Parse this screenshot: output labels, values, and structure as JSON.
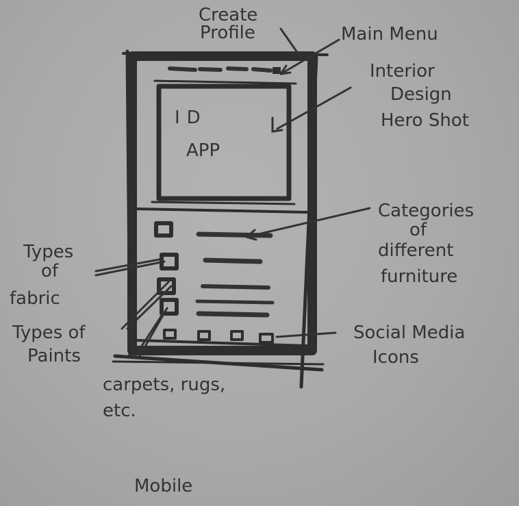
{
  "screen": {
    "hero_line1": "ID",
    "hero_line2": "APP"
  },
  "annotations": {
    "create_profile": [
      "Create",
      "Profile"
    ],
    "main_menu": "Main Menu",
    "hero_shot": [
      "Interior",
      "Design",
      "Hero Shot"
    ],
    "categories": [
      "Categories",
      "of",
      "different",
      "furniture"
    ],
    "types_of_fabric": [
      "Types",
      "of",
      "fabric"
    ],
    "types_of_paints": [
      "Types of",
      "Paints"
    ],
    "carpets": [
      "carpets, rugs,",
      "etc."
    ],
    "social_media": [
      "Social Media",
      "Icons"
    ]
  },
  "caption": "Mobile",
  "colors": {
    "paper": "#aaaaaa",
    "ink": "#2e2e2e"
  }
}
